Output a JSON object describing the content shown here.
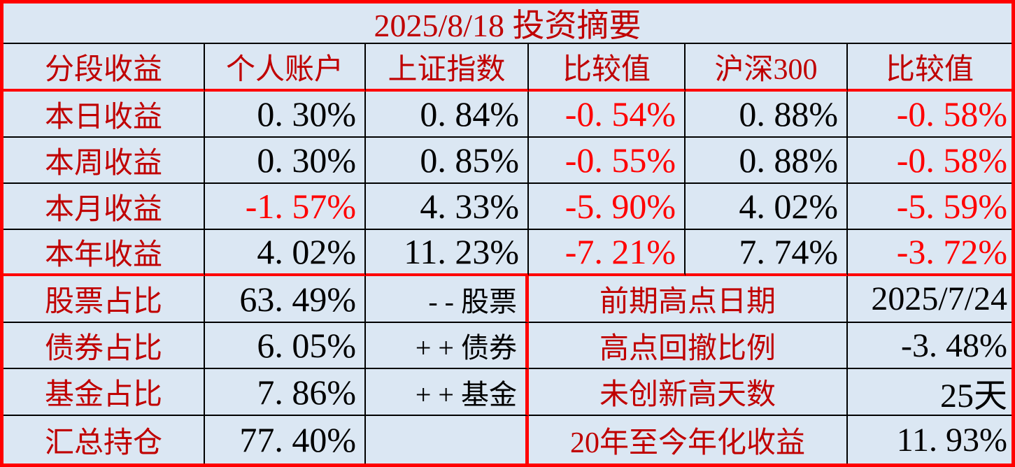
{
  "title": "2025/8/18 投资摘要",
  "colors": {
    "background": "#dbe7f3",
    "label_red": "#c00000",
    "value_negative": "#ff0000",
    "value_black": "#000000",
    "border_red": "#ff0000",
    "border_black": "#000000"
  },
  "chart_data": {
    "type": "table",
    "title": "2025/8/18 投资摘要",
    "headers": [
      "分段收益",
      "个人账户",
      "上证指数",
      "比较值",
      "沪深300",
      "比较值"
    ],
    "performance_rows": [
      {
        "label": "本日收益",
        "personal": "0. 30%",
        "sse": "0. 84%",
        "diff_sse": "-0. 54%",
        "csi300": "0. 88%",
        "diff_csi": "-0. 58%"
      },
      {
        "label": "本周收益",
        "personal": "0. 30%",
        "sse": "0. 85%",
        "diff_sse": "-0. 55%",
        "csi300": "0. 88%",
        "diff_csi": "-0. 58%"
      },
      {
        "label": "本月收益",
        "personal": "-1. 57%",
        "sse": "4. 33%",
        "diff_sse": "-5. 90%",
        "csi300": "4. 02%",
        "diff_csi": "-5. 59%"
      },
      {
        "label": "本年收益",
        "personal": "4. 02%",
        "sse": "11. 23%",
        "diff_sse": "-7. 21%",
        "csi300": "7. 74%",
        "diff_csi": "-3. 72%"
      }
    ],
    "allocation_rows": [
      {
        "label": "股票占比",
        "value": "63. 49%",
        "note": "- - 股票"
      },
      {
        "label": "债券占比",
        "value": "6. 05%",
        "note": "+ + 债券"
      },
      {
        "label": "基金占比",
        "value": "7. 86%",
        "note": "+ + 基金"
      },
      {
        "label": "汇总持仓",
        "value": "77. 40%",
        "note": ""
      }
    ],
    "stats_rows": [
      {
        "label": "前期高点日期",
        "value": "2025/7/24"
      },
      {
        "label": "高点回撤比例",
        "value": "-3. 48%"
      },
      {
        "label": "未创新高天数",
        "value": "25天"
      },
      {
        "label": "20年至今年化收益",
        "value": "11. 93%"
      }
    ]
  }
}
